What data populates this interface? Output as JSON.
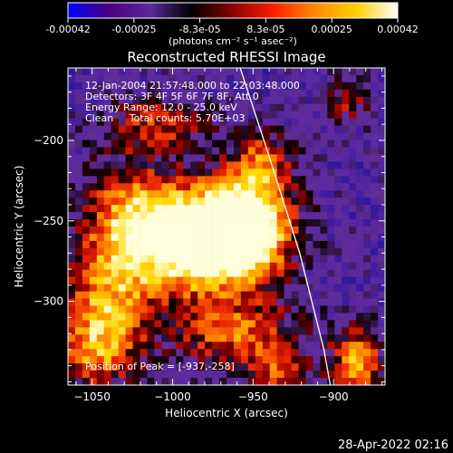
{
  "chart_data": {
    "type": "heatmap",
    "title": "Reconstructed RHESSI Image",
    "xlabel": "Heliocentric X (arcsec)",
    "ylabel": "Heliocentric Y (arcsec)",
    "xlim": [
      -1065,
      -868
    ],
    "ylim": [
      -352,
      -155
    ],
    "xticks": [
      -1050,
      -1000,
      -950,
      -900
    ],
    "yticks": [
      -200,
      -250,
      -300
    ],
    "colorbar": {
      "ticks": [
        "-0.00042",
        "-0.00025",
        "-8.3e-05",
        "8.3e-05",
        "0.00025",
        "0.00042"
      ],
      "min": -0.00042,
      "max": 0.00042,
      "unit_label": "(photons cm⁻² s⁻¹ asec⁻²)",
      "colors": [
        "#0000ff",
        "#4b0082",
        "#5a2a9a",
        "#000000",
        "#8b0000",
        "#ff2000",
        "#ff8c00",
        "#ffd000",
        "#ffffff"
      ]
    },
    "annotations": {
      "time_range": "12-Jan-2004 21:57:48.000 to 22:03:48.000",
      "detectors": "Detectors: 3F 4F 5F 6F 7F 8F, Att 0",
      "energy_range": "Energy Range: 12.0 - 25.0 keV",
      "clean_counts": "Clean     Total counts: 5.70E+03",
      "peak": "Position of Peak = [-937,-258]"
    },
    "peak": {
      "x": -937,
      "y": -258
    },
    "limb_points": [
      [
        -958,
        -155
      ],
      [
        -940,
        -210
      ],
      [
        -921,
        -270
      ],
      [
        -906,
        -330
      ],
      [
        -902,
        -352
      ]
    ],
    "intensity_blobs": [
      {
        "x": -960,
        "y": -255,
        "sx": 22,
        "sy": 20,
        "a": 1.0
      },
      {
        "x": -985,
        "y": -265,
        "sx": 28,
        "sy": 22,
        "a": 0.75
      },
      {
        "x": -1025,
        "y": -250,
        "sx": 20,
        "sy": 25,
        "a": 0.55
      },
      {
        "x": -1040,
        "y": -300,
        "sx": 18,
        "sy": 25,
        "a": 0.45
      },
      {
        "x": -945,
        "y": -215,
        "sx": 14,
        "sy": 14,
        "a": 0.45
      },
      {
        "x": -1010,
        "y": -190,
        "sx": 22,
        "sy": 12,
        "a": 0.35
      },
      {
        "x": -960,
        "y": -320,
        "sx": 28,
        "sy": 14,
        "a": 0.45
      },
      {
        "x": -1050,
        "y": -330,
        "sx": 18,
        "sy": 18,
        "a": 0.4
      },
      {
        "x": -885,
        "y": -340,
        "sx": 12,
        "sy": 16,
        "a": 0.55
      },
      {
        "x": -935,
        "y": -345,
        "sx": 14,
        "sy": 10,
        "a": 0.35
      },
      {
        "x": -890,
        "y": -175,
        "sx": 10,
        "sy": 10,
        "a": 0.3
      }
    ]
  },
  "date_stamp": "28-Apr-2022 02:16"
}
